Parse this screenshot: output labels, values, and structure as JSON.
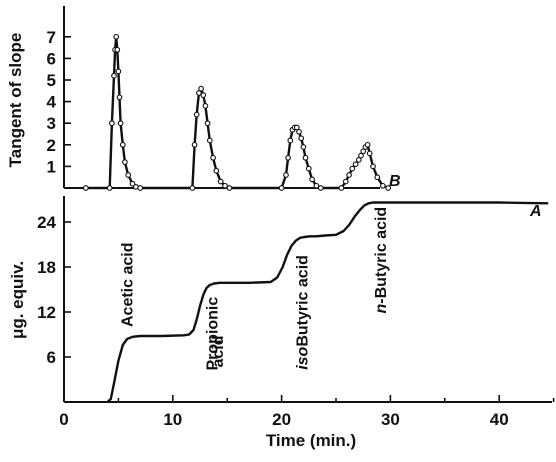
{
  "chart_data": [
    {
      "type": "scatter",
      "panel": "upper",
      "ylabel": "Tangent of slope",
      "ylim": [
        0,
        8
      ],
      "y_ticks": [
        "1",
        "2",
        "3",
        "4",
        "5",
        "6",
        "7"
      ],
      "y_tick_values": [
        1,
        2,
        3,
        4,
        5,
        6,
        7
      ],
      "xlim": [
        0,
        45
      ],
      "curve_label": "B",
      "series": [
        {
          "x": [
            2.0,
            4.2,
            4.4,
            4.6,
            4.7,
            4.8,
            4.9,
            5.0,
            5.1,
            5.2,
            5.4,
            5.6,
            5.9,
            6.3,
            6.6,
            7.0,
            11.8,
            12.0,
            12.2,
            12.4,
            12.6,
            12.8,
            13.0,
            13.2,
            13.4,
            13.7,
            14.0,
            14.4,
            14.8,
            15.2,
            20.0,
            20.4,
            20.6,
            20.8,
            21.0,
            21.2,
            21.4,
            21.6,
            21.8,
            22.0,
            22.2,
            22.5,
            22.8,
            23.2,
            23.6,
            25.5,
            25.9,
            26.2,
            26.5,
            26.8,
            27.1,
            27.3,
            27.5,
            27.7,
            27.9,
            28.1,
            28.4,
            28.8,
            29.3,
            29.8
          ],
          "y": [
            0.0,
            0.0,
            3.0,
            5.2,
            6.4,
            7.0,
            6.4,
            5.4,
            4.2,
            3.0,
            2.0,
            1.2,
            0.6,
            0.2,
            0.05,
            0.0,
            0.0,
            2.0,
            3.4,
            4.4,
            4.6,
            4.3,
            3.8,
            3.0,
            2.2,
            1.4,
            0.8,
            0.3,
            0.1,
            0.0,
            0.0,
            0.6,
            1.4,
            2.2,
            2.7,
            2.8,
            2.8,
            2.6,
            2.3,
            1.9,
            1.4,
            0.9,
            0.4,
            0.1,
            0.0,
            0.0,
            0.3,
            0.6,
            0.9,
            1.1,
            1.3,
            1.5,
            1.7,
            1.9,
            2.0,
            1.6,
            1.0,
            0.5,
            0.1,
            0.0
          ]
        }
      ]
    },
    {
      "type": "line",
      "panel": "lower",
      "xlabel": "Time (min.)",
      "ylabel": "μg. equiv.",
      "xlim": [
        0,
        45
      ],
      "ylim": [
        0,
        27.5
      ],
      "x_ticks": [
        "0",
        "10",
        "20",
        "30",
        "40"
      ],
      "x_tick_values": [
        0,
        10,
        20,
        30,
        40
      ],
      "y_ticks": [
        "6",
        "12",
        "18",
        "24"
      ],
      "y_tick_values": [
        6,
        12,
        18,
        24
      ],
      "curve_label": "A",
      "series": [
        {
          "x": [
            4.0,
            4.3,
            4.6,
            5.0,
            5.4,
            5.8,
            6.3,
            7,
            9,
            11,
            11.5,
            11.9,
            12.2,
            12.5,
            12.8,
            13.1,
            13.4,
            13.8,
            14.3,
            15,
            17,
            19,
            19.6,
            20.1,
            20.5,
            20.9,
            21.3,
            21.7,
            22.1,
            22.6,
            23.2,
            24,
            25,
            25.7,
            26.2,
            26.7,
            27.2,
            27.6,
            28.0,
            28.4,
            28.9,
            29.5,
            31,
            35,
            40,
            44.5
          ],
          "y": [
            0.0,
            0.4,
            2.5,
            5.5,
            7.6,
            8.4,
            8.7,
            8.8,
            8.8,
            8.9,
            9.0,
            9.6,
            11.0,
            12.8,
            14.3,
            15.2,
            15.6,
            15.8,
            15.9,
            15.9,
            15.9,
            16.0,
            16.6,
            18.0,
            19.6,
            20.8,
            21.5,
            21.9,
            22.0,
            22.1,
            22.1,
            22.2,
            22.3,
            22.8,
            23.6,
            24.7,
            25.6,
            26.2,
            26.5,
            26.6,
            26.6,
            26.6,
            26.6,
            26.6,
            26.6,
            26.5
          ]
        }
      ],
      "annotations": [
        "Acetic acid",
        "Propionic",
        "acid",
        "isoButyric acid",
        "n-Butyric acid"
      ],
      "annotation_x": [
        6.3,
        14.1,
        14.6,
        22.4,
        29.6
      ],
      "annotation_y": [
        10.0,
        4.2,
        4.6,
        4.3,
        11.8
      ],
      "annotation_parts": [
        [
          "Acetic acid"
        ],
        [
          "Propionic"
        ],
        [
          "acid"
        ],
        [
          "iso",
          "Butyric acid"
        ],
        [
          "n",
          "-Butyric acid"
        ]
      ],
      "annotation_italic_first": [
        false,
        false,
        false,
        true,
        true
      ]
    }
  ]
}
